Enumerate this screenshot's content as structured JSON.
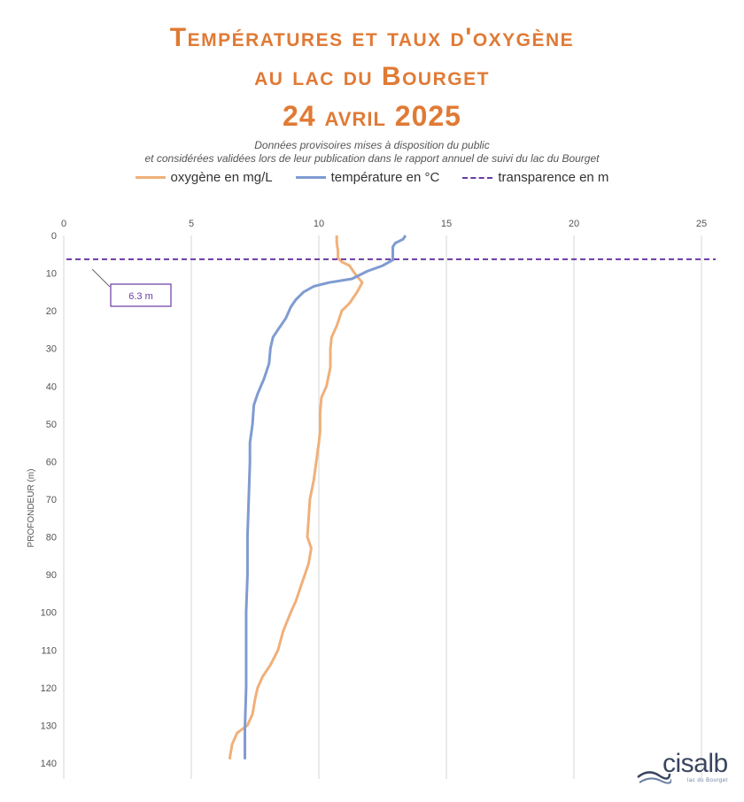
{
  "title": {
    "line1": "Températures et taux d'oxygène",
    "line2": "au lac du Bourget",
    "line3": "24 avril 2025"
  },
  "subtitle": {
    "line1": "Données provisoires mises à disposition du public",
    "line2": "et considérées validées lors de leur publication dans le rapport annuel de suivi du lac du Bourget"
  },
  "legend": {
    "oxygen": "oxygène en mg/L",
    "temperature": "température en °C",
    "transparency": "transparence en m"
  },
  "logo": {
    "name": "cisalb",
    "tagline": "lac du Bourget"
  },
  "colors": {
    "oxygen": "#f0b07a",
    "temperature": "#7f9bd1",
    "transparency": "#6a3aa2",
    "title": "#e07a35"
  },
  "chart_data": {
    "type": "line",
    "xlim": [
      0,
      25
    ],
    "x_ticks": [
      0,
      5,
      10,
      15,
      20,
      25
    ],
    "x_position": "top",
    "ylim": [
      0,
      140
    ],
    "y_ticks": [
      0,
      10,
      20,
      30,
      40,
      50,
      60,
      70,
      80,
      90,
      100,
      110,
      120,
      130,
      140
    ],
    "y_inverted": true,
    "ylabel": "PROFONDEUR (m)",
    "xlabel": "",
    "grid": "vertical",
    "series": [
      {
        "name": "oxygène en mg/L",
        "points": [
          [
            10.7,
            0
          ],
          [
            10.7,
            2
          ],
          [
            10.75,
            4
          ],
          [
            10.75,
            6
          ],
          [
            10.9,
            7
          ],
          [
            11.2,
            8
          ],
          [
            11.4,
            10
          ],
          [
            11.7,
            12.5
          ],
          [
            11.5,
            15
          ],
          [
            11.2,
            18
          ],
          [
            10.9,
            20
          ],
          [
            10.7,
            24
          ],
          [
            10.5,
            27
          ],
          [
            10.45,
            30
          ],
          [
            10.45,
            35
          ],
          [
            10.3,
            40
          ],
          [
            10.1,
            43
          ],
          [
            10.05,
            47
          ],
          [
            10.05,
            52
          ],
          [
            10.0,
            55
          ],
          [
            9.9,
            60
          ],
          [
            9.8,
            65
          ],
          [
            9.65,
            70
          ],
          [
            9.6,
            75
          ],
          [
            9.55,
            80
          ],
          [
            9.7,
            83
          ],
          [
            9.6,
            87
          ],
          [
            9.45,
            90
          ],
          [
            9.3,
            93
          ],
          [
            9.1,
            97
          ],
          [
            8.9,
            100
          ],
          [
            8.6,
            105
          ],
          [
            8.4,
            110
          ],
          [
            8.1,
            114
          ],
          [
            7.8,
            117
          ],
          [
            7.6,
            120
          ],
          [
            7.5,
            123
          ],
          [
            7.4,
            127
          ],
          [
            7.2,
            130
          ],
          [
            6.8,
            132
          ],
          [
            6.6,
            135
          ],
          [
            6.5,
            139
          ]
        ]
      },
      {
        "name": "température en °C",
        "points": [
          [
            13.4,
            0
          ],
          [
            13.3,
            1
          ],
          [
            13.0,
            2
          ],
          [
            12.9,
            3
          ],
          [
            12.9,
            6.5
          ],
          [
            12.5,
            8
          ],
          [
            11.9,
            9.5
          ],
          [
            11.3,
            11.5
          ],
          [
            10.4,
            12.5
          ],
          [
            9.8,
            13.5
          ],
          [
            9.4,
            15
          ],
          [
            9.1,
            17
          ],
          [
            8.9,
            19
          ],
          [
            8.7,
            22
          ],
          [
            8.4,
            25
          ],
          [
            8.2,
            27
          ],
          [
            8.1,
            30
          ],
          [
            8.05,
            34
          ],
          [
            7.85,
            38
          ],
          [
            7.6,
            42
          ],
          [
            7.45,
            45
          ],
          [
            7.4,
            50
          ],
          [
            7.3,
            55
          ],
          [
            7.3,
            60
          ],
          [
            7.25,
            70
          ],
          [
            7.2,
            80
          ],
          [
            7.2,
            90
          ],
          [
            7.15,
            100
          ],
          [
            7.15,
            110
          ],
          [
            7.15,
            120
          ],
          [
            7.1,
            131
          ],
          [
            7.1,
            139
          ]
        ]
      }
    ],
    "transparency": {
      "depth": 6.3,
      "label": "6.3 m"
    }
  }
}
